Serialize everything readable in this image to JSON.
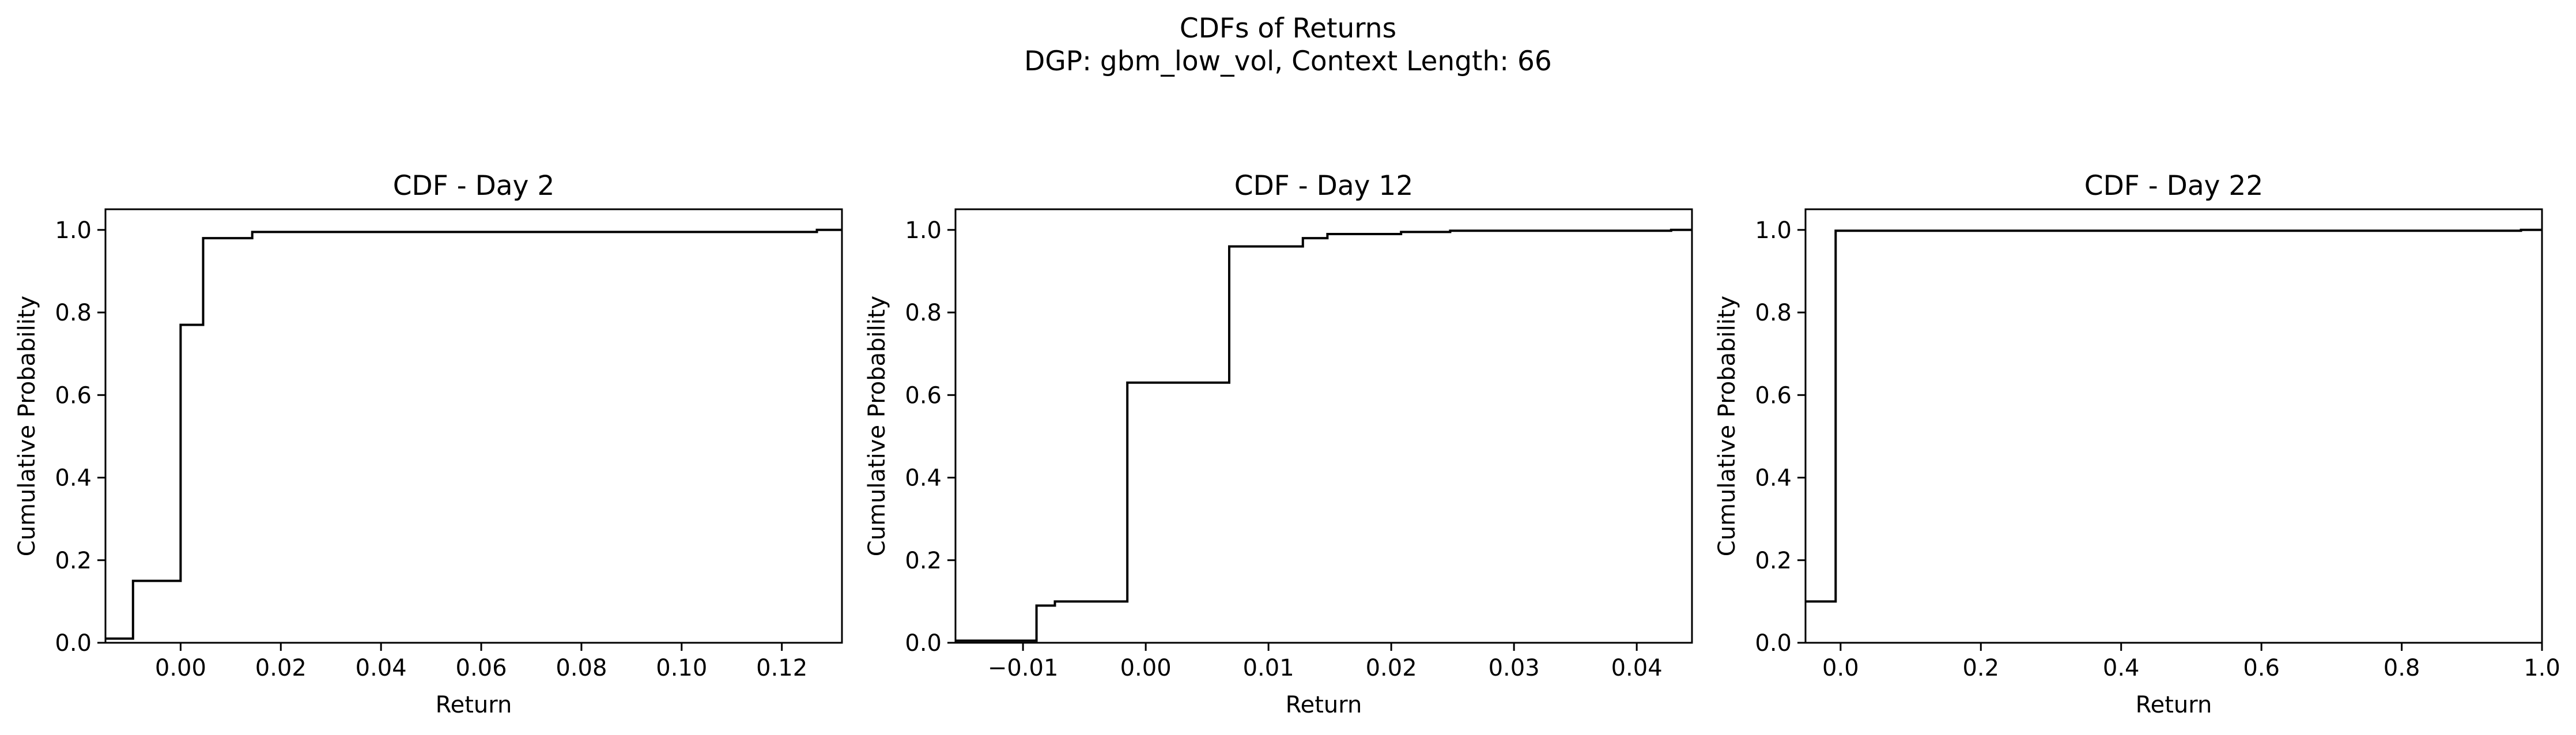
{
  "suptitle": {
    "line1": "CDFs of Returns",
    "line2": "DGP: gbm_low_vol, Context Length: 66"
  },
  "chart_data": [
    {
      "type": "line",
      "drawstyle": "step-post",
      "title": "CDF - Day 2",
      "xlabel": "Return",
      "ylabel": "Cumulative Probability",
      "xlim": [
        -0.015,
        0.132
      ],
      "ylim": [
        0,
        1.05
      ],
      "xticks": [
        0.0,
        0.02,
        0.04,
        0.06,
        0.08,
        0.1,
        0.12
      ],
      "xtick_labels": [
        "0.00",
        "0.02",
        "0.04",
        "0.06",
        "0.08",
        "0.10",
        "0.12"
      ],
      "yticks": [
        0.0,
        0.2,
        0.4,
        0.6,
        0.8,
        1.0
      ],
      "ytick_labels": [
        "0.0",
        "0.2",
        "0.4",
        "0.6",
        "0.8",
        "1.0"
      ],
      "color": "#000000",
      "x": [
        -0.015,
        -0.0095,
        0.0,
        0.0045,
        0.0143,
        0.127,
        0.132
      ],
      "y": [
        0.01,
        0.15,
        0.77,
        0.98,
        0.995,
        1.0,
        1.0
      ]
    },
    {
      "type": "line",
      "drawstyle": "step-post",
      "title": "CDF - Day 12",
      "xlabel": "Return",
      "ylabel": "Cumulative Probability",
      "xlim": [
        -0.0155,
        0.0445
      ],
      "ylim": [
        0,
        1.05
      ],
      "xticks": [
        -0.01,
        0.0,
        0.01,
        0.02,
        0.03,
        0.04
      ],
      "xtick_labels": [
        "−0.01",
        "0.00",
        "0.01",
        "0.02",
        "0.03",
        "0.04"
      ],
      "yticks": [
        0.0,
        0.2,
        0.4,
        0.6,
        0.8,
        1.0
      ],
      "ytick_labels": [
        "0.0",
        "0.2",
        "0.4",
        "0.6",
        "0.8",
        "1.0"
      ],
      "color": "#000000",
      "x": [
        -0.0155,
        -0.0089,
        -0.0074,
        -0.0015,
        0.0068,
        0.0128,
        0.0148,
        0.0208,
        0.0248,
        0.0428,
        0.0445
      ],
      "y": [
        0.005,
        0.09,
        0.1,
        0.63,
        0.96,
        0.98,
        0.99,
        0.995,
        0.998,
        1.0,
        1.0
      ]
    },
    {
      "type": "line",
      "drawstyle": "step-post",
      "title": "CDF - Day 22",
      "xlabel": "Return",
      "ylabel": "Cumulative Probability",
      "xlim": [
        -0.05,
        1.0
      ],
      "ylim": [
        0,
        1.05
      ],
      "xticks": [
        0.0,
        0.2,
        0.4,
        0.6,
        0.8,
        1.0
      ],
      "xtick_labels": [
        "0.0",
        "0.2",
        "0.4",
        "0.6",
        "0.8",
        "1.0"
      ],
      "yticks": [
        0.0,
        0.2,
        0.4,
        0.6,
        0.8,
        1.0
      ],
      "ytick_labels": [
        "0.0",
        "0.2",
        "0.4",
        "0.6",
        "0.8",
        "1.0"
      ],
      "color": "#000000",
      "x": [
        -0.05,
        -0.007,
        0.97,
        1.0
      ],
      "y": [
        0.1,
        0.998,
        1.0,
        1.0
      ]
    }
  ]
}
